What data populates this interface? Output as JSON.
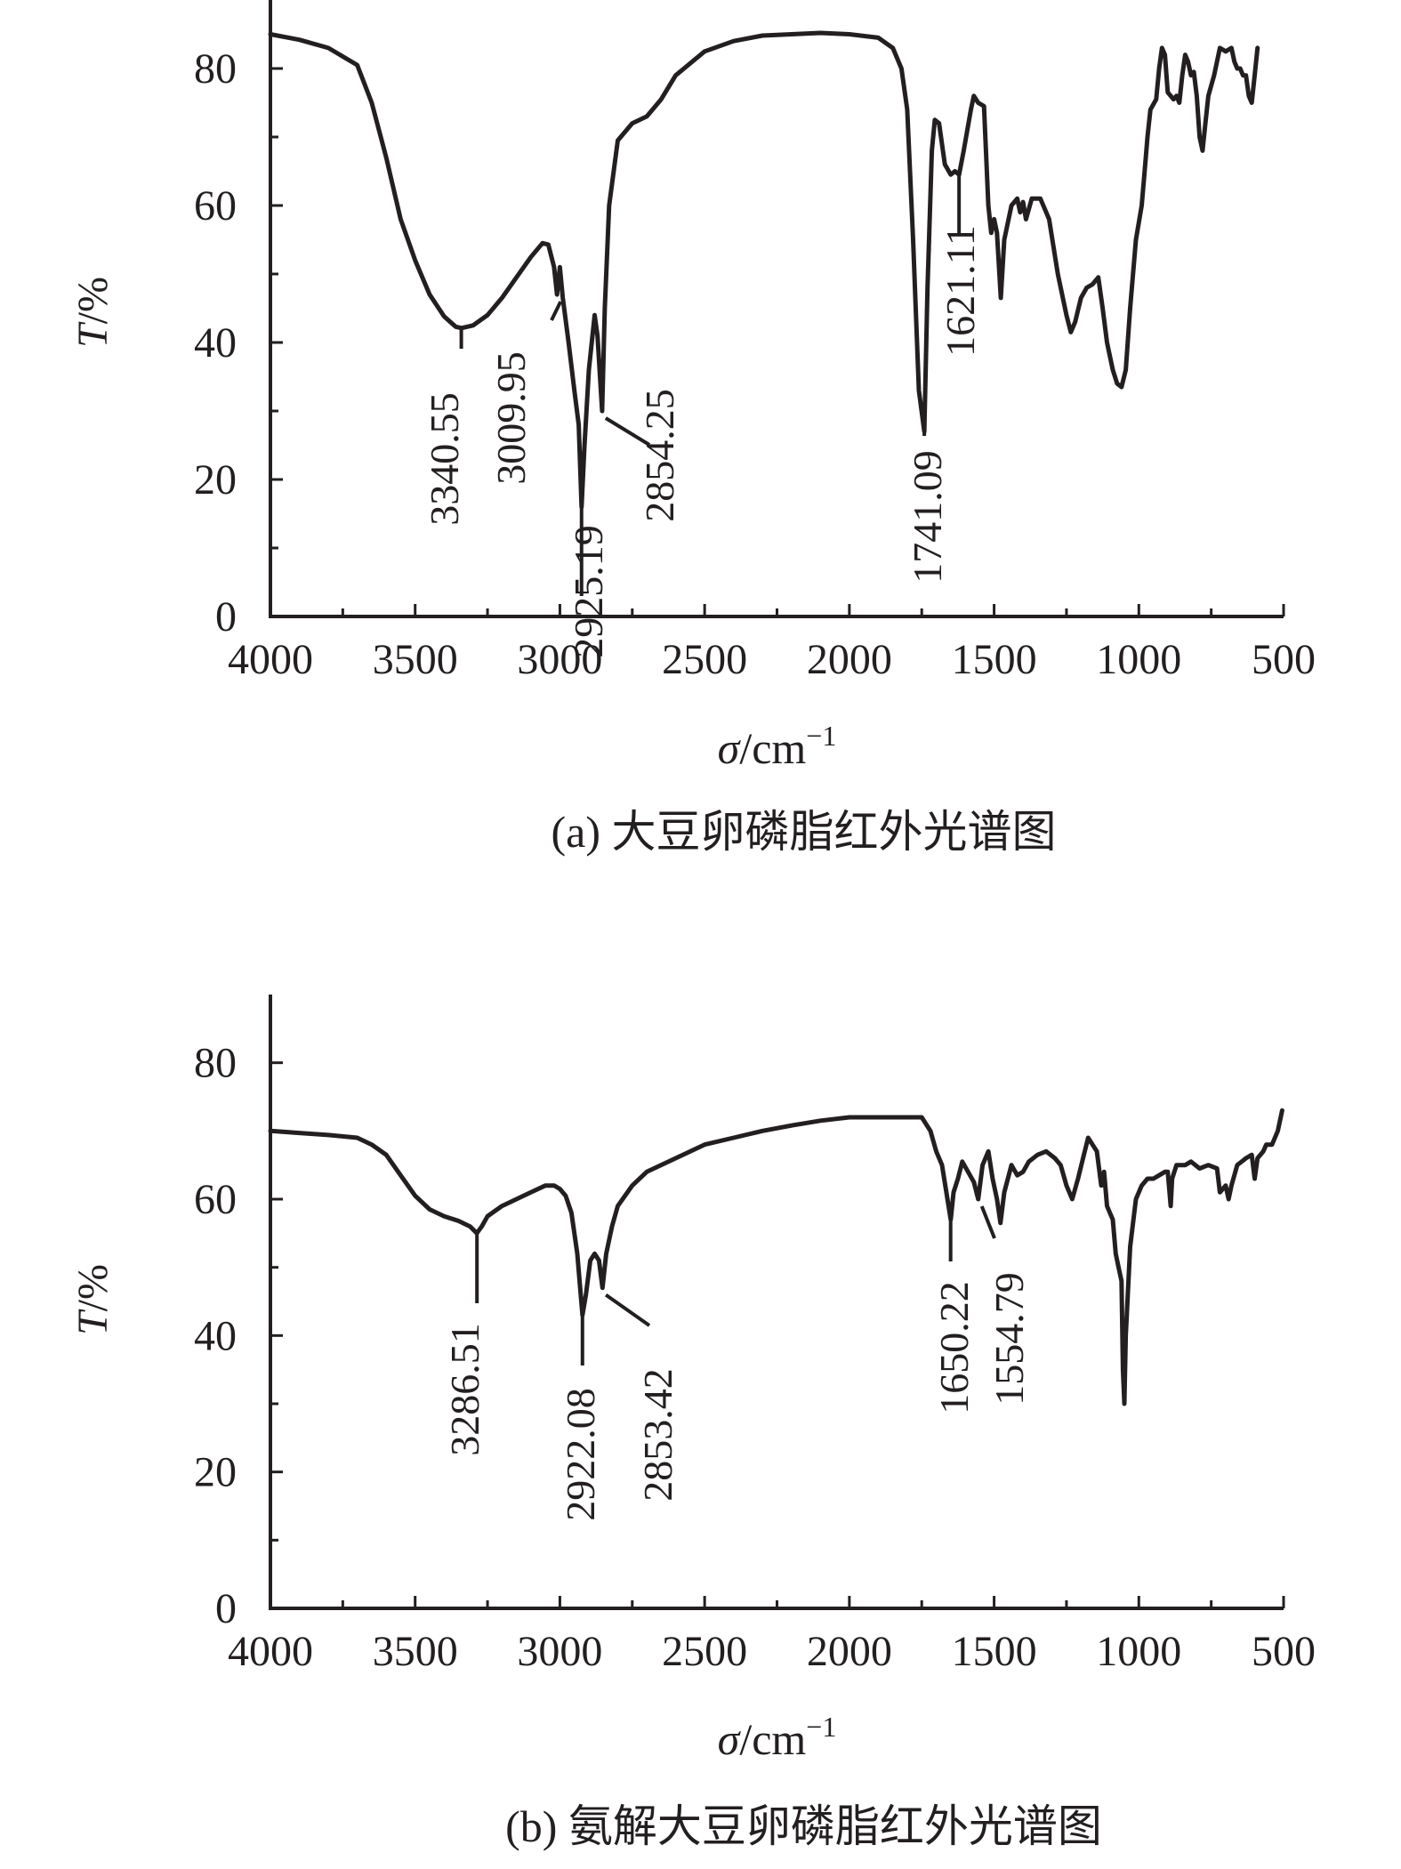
{
  "chart_data": [
    {
      "type": "line",
      "caption": "(a) 大豆卵磷脂红外光谱图",
      "xlabel": {
        "symbol": "σ",
        "unit": "/cm",
        "sup": "−1"
      },
      "ylabel": {
        "symbol": "T",
        "unit": "/%"
      },
      "xlim": [
        4000,
        500
      ],
      "xticks": [
        4000,
        3500,
        3000,
        2500,
        2000,
        1500,
        1000,
        500
      ],
      "ylim": [
        0,
        90
      ],
      "yticks": [
        0,
        20,
        40,
        60,
        80
      ],
      "grid": false,
      "series": [
        {
          "points": [
            [
              4000,
              85
            ],
            [
              3900,
              84.2
            ],
            [
              3800,
              83
            ],
            [
              3700,
              80.5
            ],
            [
              3650,
              75
            ],
            [
              3600,
              67
            ],
            [
              3550,
              58
            ],
            [
              3500,
              52
            ],
            [
              3450,
              47
            ],
            [
              3400,
              43.8
            ],
            [
              3360,
              42.3
            ],
            [
              3340,
              42.1
            ],
            [
              3300,
              42.5
            ],
            [
              3250,
              44
            ],
            [
              3200,
              46.5
            ],
            [
              3150,
              49.5
            ],
            [
              3100,
              52.5
            ],
            [
              3060,
              54.5
            ],
            [
              3040,
              54.3
            ],
            [
              3020,
              51
            ],
            [
              3010,
              47
            ],
            [
              3000,
              51
            ],
            [
              2990,
              46.5
            ],
            [
              2970,
              40
            ],
            [
              2950,
              33
            ],
            [
              2935,
              28
            ],
            [
              2925,
              16
            ],
            [
              2915,
              25
            ],
            [
              2900,
              36
            ],
            [
              2880,
              44
            ],
            [
              2870,
              41
            ],
            [
              2860,
              34
            ],
            [
              2854,
              30
            ],
            [
              2845,
              45
            ],
            [
              2830,
              60
            ],
            [
              2800,
              69.5
            ],
            [
              2750,
              72
            ],
            [
              2700,
              73
            ],
            [
              2650,
              75.5
            ],
            [
              2600,
              79
            ],
            [
              2500,
              82.5
            ],
            [
              2400,
              84
            ],
            [
              2300,
              84.8
            ],
            [
              2200,
              85
            ],
            [
              2100,
              85.2
            ],
            [
              2000,
              85
            ],
            [
              1900,
              84.5
            ],
            [
              1850,
              83
            ],
            [
              1820,
              80
            ],
            [
              1800,
              74
            ],
            [
              1780,
              55
            ],
            [
              1760,
              33
            ],
            [
              1741,
              27
            ],
            [
              1730,
              48
            ],
            [
              1715,
              68
            ],
            [
              1705,
              72.5
            ],
            [
              1690,
              72
            ],
            [
              1670,
              66
            ],
            [
              1650,
              64.5
            ],
            [
              1635,
              65
            ],
            [
              1621,
              64.5
            ],
            [
              1605,
              68
            ],
            [
              1580,
              74
            ],
            [
              1570,
              76
            ],
            [
              1555,
              75
            ],
            [
              1535,
              74.5
            ],
            [
              1520,
              60
            ],
            [
              1510,
              56
            ],
            [
              1500,
              58
            ],
            [
              1490,
              56
            ],
            [
              1477,
              46.5
            ],
            [
              1465,
              55
            ],
            [
              1440,
              60
            ],
            [
              1420,
              61
            ],
            [
              1410,
              59
            ],
            [
              1400,
              60.5
            ],
            [
              1390,
              58
            ],
            [
              1370,
              61
            ],
            [
              1340,
              61
            ],
            [
              1310,
              58
            ],
            [
              1280,
              50
            ],
            [
              1250,
              44
            ],
            [
              1235,
              41.5
            ],
            [
              1220,
              43
            ],
            [
              1200,
              46.5
            ],
            [
              1180,
              48
            ],
            [
              1160,
              48.5
            ],
            [
              1140,
              49.5
            ],
            [
              1125,
              45
            ],
            [
              1110,
              40
            ],
            [
              1090,
              36
            ],
            [
              1075,
              34
            ],
            [
              1060,
              33.5
            ],
            [
              1045,
              36
            ],
            [
              1030,
              45
            ],
            [
              1010,
              55
            ],
            [
              990,
              60
            ],
            [
              980,
              65
            ],
            [
              970,
              70
            ],
            [
              960,
              74
            ],
            [
              940,
              75.5
            ],
            [
              930,
              80
            ],
            [
              920,
              83
            ],
            [
              910,
              82
            ],
            [
              900,
              76.5
            ],
            [
              880,
              75.5
            ],
            [
              870,
              76
            ],
            [
              860,
              75
            ],
            [
              850,
              79
            ],
            [
              840,
              82
            ],
            [
              830,
              81
            ],
            [
              820,
              79
            ],
            [
              810,
              79.5
            ],
            [
              800,
              76
            ],
            [
              790,
              70
            ],
            [
              780,
              68
            ],
            [
              770,
              72
            ],
            [
              760,
              76
            ],
            [
              740,
              79
            ],
            [
              720,
              83
            ],
            [
              700,
              82.5
            ],
            [
              680,
              83
            ],
            [
              670,
              81
            ],
            [
              660,
              80
            ],
            [
              650,
              80
            ],
            [
              640,
              79
            ],
            [
              630,
              79
            ],
            [
              620,
              76
            ],
            [
              610,
              75
            ],
            [
              600,
              79
            ],
            [
              590,
              83
            ]
          ]
        }
      ],
      "annotations": [
        {
          "label": "3340.55",
          "x": 3340.55,
          "y": 42.1
        },
        {
          "label": "3009.95",
          "x": 3009.95,
          "y": 47
        },
        {
          "label": "2925.19",
          "x": 2925.19,
          "y": 16
        },
        {
          "label": "2854.25",
          "x": 2854.25,
          "y": 30
        },
        {
          "label": "1741.09",
          "x": 1741.09,
          "y": 27
        },
        {
          "label": "1621.11",
          "x": 1621.11,
          "y": 64.5
        }
      ]
    },
    {
      "type": "line",
      "caption": "(b) 氨解大豆卵磷脂红外光谱图",
      "xlabel": {
        "symbol": "σ",
        "unit": "/cm",
        "sup": "−1"
      },
      "ylabel": {
        "symbol": "T",
        "unit": "/%"
      },
      "xlim": [
        4000,
        500
      ],
      "xticks": [
        4000,
        3500,
        3000,
        2500,
        2000,
        1500,
        1000,
        500
      ],
      "ylim": [
        0,
        90
      ],
      "yticks": [
        0,
        20,
        40,
        60,
        80
      ],
      "grid": false,
      "series": [
        {
          "points": [
            [
              4000,
              70
            ],
            [
              3900,
              69.7
            ],
            [
              3800,
              69.4
            ],
            [
              3700,
              69
            ],
            [
              3650,
              68
            ],
            [
              3600,
              66.5
            ],
            [
              3550,
              63.5
            ],
            [
              3500,
              60.5
            ],
            [
              3450,
              58.5
            ],
            [
              3400,
              57.5
            ],
            [
              3350,
              56.8
            ],
            [
              3310,
              56
            ],
            [
              3287,
              55
            ],
            [
              3270,
              56
            ],
            [
              3250,
              57.5
            ],
            [
              3200,
              59
            ],
            [
              3150,
              60
            ],
            [
              3100,
              61
            ],
            [
              3050,
              62
            ],
            [
              3020,
              62
            ],
            [
              3000,
              61.5
            ],
            [
              2980,
              60.5
            ],
            [
              2960,
              58
            ],
            [
              2940,
              52
            ],
            [
              2930,
              47
            ],
            [
              2922,
              43
            ],
            [
              2910,
              46
            ],
            [
              2895,
              51
            ],
            [
              2880,
              52
            ],
            [
              2865,
              51
            ],
            [
              2853,
              47
            ],
            [
              2840,
              52
            ],
            [
              2820,
              56
            ],
            [
              2800,
              59
            ],
            [
              2750,
              62
            ],
            [
              2700,
              64
            ],
            [
              2600,
              66
            ],
            [
              2500,
              68
            ],
            [
              2400,
              69
            ],
            [
              2300,
              70
            ],
            [
              2200,
              70.8
            ],
            [
              2100,
              71.5
            ],
            [
              2000,
              72
            ],
            [
              1900,
              72
            ],
            [
              1800,
              72
            ],
            [
              1750,
              72
            ],
            [
              1720,
              70
            ],
            [
              1700,
              67
            ],
            [
              1680,
              65
            ],
            [
              1665,
              61
            ],
            [
              1650,
              57
            ],
            [
              1640,
              61
            ],
            [
              1625,
              63
            ],
            [
              1610,
              65.5
            ],
            [
              1590,
              64
            ],
            [
              1570,
              62.5
            ],
            [
              1555,
              60
            ],
            [
              1540,
              65
            ],
            [
              1520,
              67
            ],
            [
              1505,
              63
            ],
            [
              1490,
              60
            ],
            [
              1478,
              56.5
            ],
            [
              1465,
              61
            ],
            [
              1440,
              65
            ],
            [
              1420,
              63.5
            ],
            [
              1400,
              64
            ],
            [
              1380,
              65.5
            ],
            [
              1350,
              66.5
            ],
            [
              1320,
              67
            ],
            [
              1290,
              66
            ],
            [
              1270,
              65
            ],
            [
              1250,
              62
            ],
            [
              1230,
              60
            ],
            [
              1210,
              63
            ],
            [
              1190,
              66.5
            ],
            [
              1175,
              69
            ],
            [
              1160,
              68
            ],
            [
              1145,
              67
            ],
            [
              1130,
              62
            ],
            [
              1120,
              64
            ],
            [
              1110,
              59
            ],
            [
              1100,
              58
            ],
            [
              1090,
              57
            ],
            [
              1080,
              52
            ],
            [
              1070,
              50
            ],
            [
              1060,
              48
            ],
            [
              1055,
              35
            ],
            [
              1050,
              30
            ],
            [
              1045,
              40
            ],
            [
              1030,
              53
            ],
            [
              1010,
              60
            ],
            [
              990,
              62
            ],
            [
              970,
              63
            ],
            [
              950,
              63
            ],
            [
              930,
              63.5
            ],
            [
              910,
              64
            ],
            [
              900,
              64
            ],
            [
              890,
              59
            ],
            [
              885,
              63
            ],
            [
              870,
              65
            ],
            [
              840,
              65
            ],
            [
              820,
              65.5
            ],
            [
              790,
              64.5
            ],
            [
              760,
              65
            ],
            [
              730,
              64.5
            ],
            [
              720,
              61
            ],
            [
              710,
              61.5
            ],
            [
              700,
              62
            ],
            [
              690,
              60
            ],
            [
              680,
              62
            ],
            [
              660,
              65
            ],
            [
              630,
              66
            ],
            [
              610,
              66.5
            ],
            [
              600,
              63
            ],
            [
              590,
              66
            ],
            [
              570,
              67
            ],
            [
              560,
              68
            ],
            [
              540,
              68
            ],
            [
              520,
              70
            ],
            [
              505,
              73
            ]
          ]
        }
      ],
      "annotations": [
        {
          "label": "3286.51",
          "x": 3286.51,
          "y": 55
        },
        {
          "label": "2922.08",
          "x": 2922.08,
          "y": 43
        },
        {
          "label": "2853.42",
          "x": 2853.42,
          "y": 47
        },
        {
          "label": "1650.22",
          "x": 1650.22,
          "y": 57
        },
        {
          "label": "1554.79",
          "x": 1554.79,
          "y": 60
        }
      ]
    }
  ]
}
